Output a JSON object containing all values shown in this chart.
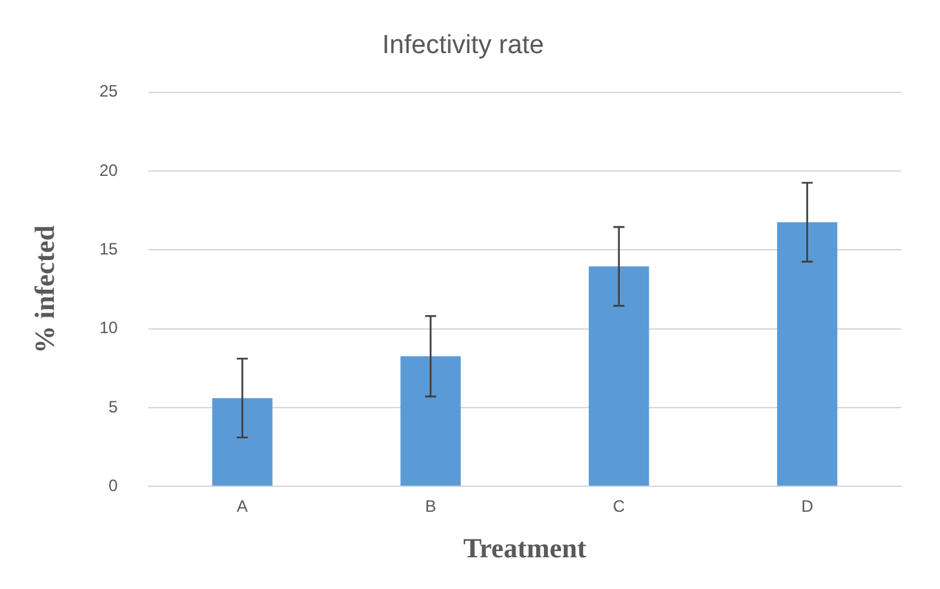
{
  "chart_data": {
    "type": "bar",
    "title": "Infectivity rate",
    "xlabel": "Treatment",
    "ylabel": "% infected",
    "categories": [
      "A",
      "B",
      "C",
      "D"
    ],
    "values": [
      5.6,
      8.25,
      13.95,
      16.75
    ],
    "errors": [
      2.5,
      2.55,
      2.5,
      2.5
    ],
    "color": "#5b9bd5",
    "ylim": [
      0,
      25
    ],
    "yticks": [
      0,
      5,
      10,
      15,
      20,
      25
    ],
    "grid": "y"
  }
}
